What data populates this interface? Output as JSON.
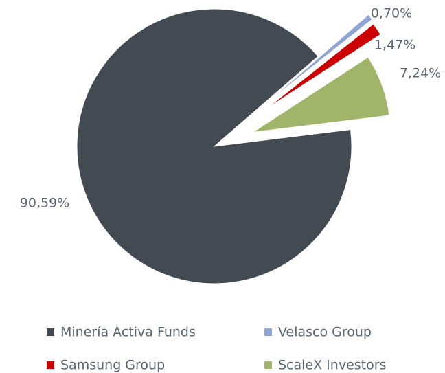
{
  "chart_data": {
    "type": "pie",
    "categories": [
      "Minería Activa Funds",
      "Velasco Group",
      "Samsung Group",
      "ScaleX Investors"
    ],
    "values": [
      90.59,
      0.7,
      1.47,
      7.24
    ],
    "value_labels": [
      "90,59%",
      "0,70%",
      "1,47%",
      "7,24%"
    ],
    "colors": [
      "#434a51",
      "#8fa5d4",
      "#cc0000",
      "#a2b46a"
    ],
    "legend": "bottom"
  }
}
